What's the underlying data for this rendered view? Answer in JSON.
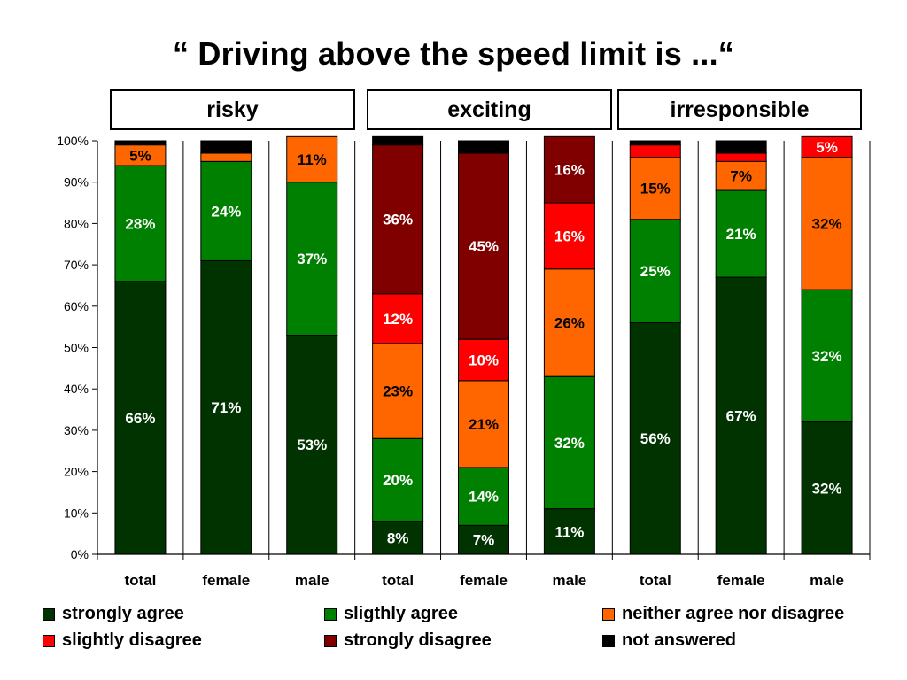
{
  "chart_data": {
    "type": "bar",
    "stacked": true,
    "title": "“ Driving above the speed limit is ...“",
    "groups": [
      "risky",
      "exciting",
      "irresponsible"
    ],
    "categories": [
      "total",
      "female",
      "male",
      "total",
      "female",
      "male",
      "total",
      "female",
      "male"
    ],
    "ylim": [
      0,
      100
    ],
    "yticks": [
      "0%",
      "10%",
      "20%",
      "30%",
      "40%",
      "50%",
      "60%",
      "70%",
      "80%",
      "90%",
      "100%"
    ],
    "grid": "vertical separators",
    "legend_position": "bottom",
    "series": [
      {
        "name": "strongly agree",
        "color": "#003300",
        "values": [
          66,
          71,
          53,
          8,
          7,
          11,
          56,
          67,
          32
        ],
        "labels": [
          "66%",
          "71%",
          "53%",
          "8%",
          "7%",
          "11%",
          "56%",
          "67%",
          "32%"
        ]
      },
      {
        "name": "sligthly agree",
        "color": "#008000",
        "values": [
          28,
          24,
          37,
          20,
          14,
          32,
          25,
          21,
          32
        ],
        "labels": [
          "28%",
          "24%",
          "37%",
          "20%",
          "14%",
          "32%",
          "25%",
          "21%",
          "32%"
        ]
      },
      {
        "name": "neither agree nor disagree",
        "color": "#FF6600",
        "values": [
          5,
          2,
          11,
          23,
          21,
          26,
          15,
          7,
          32
        ],
        "labels": [
          "5%",
          "",
          "11%",
          "23%",
          "21%",
          "26%",
          "15%",
          "7%",
          "32%"
        ]
      },
      {
        "name": "slightly disagree",
        "color": "#FF0000",
        "values": [
          0,
          0,
          0,
          12,
          10,
          16,
          3,
          2,
          5
        ],
        "labels": [
          "",
          "",
          "",
          "12%",
          "10%",
          "16%",
          "",
          "",
          "5%"
        ]
      },
      {
        "name": "strongly disagree",
        "color": "#800000",
        "values": [
          0,
          0,
          0,
          36,
          45,
          16,
          0,
          0,
          0
        ],
        "labels": [
          "",
          "",
          "",
          "36%",
          "45%",
          "16%",
          "",
          "",
          ""
        ]
      },
      {
        "name": "not answered",
        "color": "#000000",
        "values": [
          1,
          3,
          0,
          2,
          3,
          0,
          1,
          3,
          0
        ],
        "labels": [
          "",
          "",
          "",
          "",
          "",
          "",
          "",
          "",
          ""
        ]
      }
    ],
    "label_colors": [
      "#ffffff",
      "#ffffff",
      "#000000",
      "#ffffff",
      "#ffffff",
      "#ffffff"
    ]
  }
}
